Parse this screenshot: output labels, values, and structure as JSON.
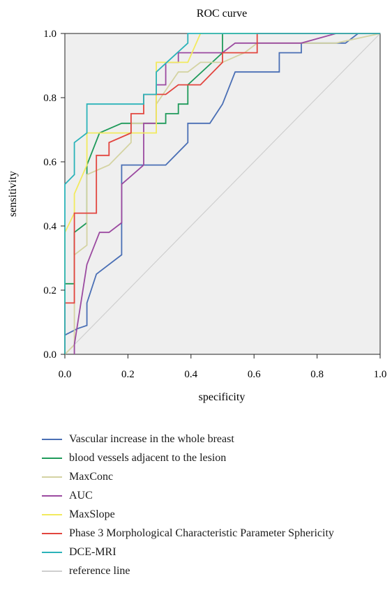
{
  "chart_data": {
    "type": "line",
    "title": "ROC curve",
    "xlabel": "specificity",
    "ylabel": "sensitivity",
    "xlim": [
      0,
      1
    ],
    "ylim": [
      0,
      1
    ],
    "xticks": [
      "0.0",
      "0.2",
      "0.4",
      "0.6",
      "0.8",
      "1.0"
    ],
    "yticks": [
      "0.0",
      "0.2",
      "0.4",
      "0.6",
      "0.8",
      "1.0"
    ],
    "grid": false,
    "legend_position": "bottom",
    "series": [
      {
        "name": "Vascular increase in the whole breast",
        "color": "#4a6fb5",
        "x": [
          0,
          0,
          0.04,
          0.07,
          0.07,
          0.1,
          0.18,
          0.18,
          0.32,
          0.39,
          0.39,
          0.46,
          0.5,
          0.54,
          0.68,
          0.68,
          0.75,
          0.75,
          0.89,
          0.93,
          1.0
        ],
        "y": [
          0,
          0.06,
          0.08,
          0.09,
          0.16,
          0.25,
          0.31,
          0.59,
          0.59,
          0.66,
          0.72,
          0.72,
          0.78,
          0.88,
          0.88,
          0.94,
          0.94,
          0.97,
          0.97,
          1.0,
          1.0
        ]
      },
      {
        "name": "blood vessels adjacent to the lesion",
        "color": "#1e9a5a",
        "x": [
          0,
          0,
          0.03,
          0.03,
          0.07,
          0.07,
          0.11,
          0.18,
          0.22,
          0.32,
          0.32,
          0.36,
          0.36,
          0.39,
          0.39,
          0.5,
          0.5,
          1.0
        ],
        "y": [
          0,
          0.22,
          0.22,
          0.38,
          0.41,
          0.59,
          0.69,
          0.72,
          0.72,
          0.72,
          0.75,
          0.75,
          0.78,
          0.78,
          0.84,
          0.94,
          1.0,
          1.0
        ]
      },
      {
        "name": "MaxConc",
        "color": "#d4d3a2",
        "x": [
          0,
          0.03,
          0.03,
          0.07,
          0.07,
          0.14,
          0.21,
          0.21,
          0.29,
          0.29,
          0.36,
          0.39,
          0.43,
          0.5,
          0.57,
          0.61,
          0.86,
          1.0
        ],
        "y": [
          0,
          0.03,
          0.31,
          0.34,
          0.56,
          0.59,
          0.66,
          0.72,
          0.72,
          0.78,
          0.88,
          0.88,
          0.91,
          0.91,
          0.94,
          0.97,
          0.97,
          1.0
        ]
      },
      {
        "name": "AUC",
        "color": "#9b4aa0",
        "x": [
          0.03,
          0.03,
          0.07,
          0.11,
          0.14,
          0.18,
          0.18,
          0.25,
          0.25,
          0.29,
          0.29,
          0.32,
          0.32,
          0.36,
          0.36,
          0.43,
          0.5,
          0.54,
          0.61,
          0.75,
          0.86,
          1.0
        ],
        "y": [
          0,
          0.03,
          0.28,
          0.38,
          0.38,
          0.41,
          0.53,
          0.59,
          0.72,
          0.72,
          0.84,
          0.84,
          0.91,
          0.91,
          0.94,
          0.94,
          0.94,
          0.97,
          0.97,
          0.97,
          1.0,
          1.0
        ]
      },
      {
        "name": "MaxSlope",
        "color": "#f2ea5e",
        "x": [
          0,
          0,
          0.03,
          0.03,
          0.07,
          0.07,
          0.14,
          0.29,
          0.29,
          0.39,
          0.43,
          1.0
        ],
        "y": [
          0,
          0.38,
          0.44,
          0.5,
          0.59,
          0.69,
          0.69,
          0.69,
          0.91,
          0.91,
          1.0,
          1.0
        ]
      },
      {
        "name": "Phase 3 Morphological Characteristic Parameter Sphericity",
        "color": "#e2453f",
        "x": [
          0,
          0,
          0.03,
          0.03,
          0.1,
          0.1,
          0.14,
          0.14,
          0.21,
          0.21,
          0.25,
          0.25,
          0.29,
          0.32,
          0.36,
          0.43,
          0.5,
          0.5,
          0.61,
          0.61,
          1.0
        ],
        "y": [
          0,
          0.16,
          0.16,
          0.44,
          0.44,
          0.62,
          0.62,
          0.66,
          0.69,
          0.75,
          0.75,
          0.81,
          0.81,
          0.81,
          0.84,
          0.84,
          0.91,
          0.94,
          0.94,
          1.0,
          1.0
        ]
      },
      {
        "name": "DCE-MRI",
        "color": "#2bb3b9",
        "x": [
          0,
          0,
          0.03,
          0.03,
          0.07,
          0.07,
          0.25,
          0.25,
          0.29,
          0.29,
          0.39,
          0.39,
          1.0
        ],
        "y": [
          0,
          0.53,
          0.56,
          0.66,
          0.69,
          0.78,
          0.78,
          0.81,
          0.81,
          0.88,
          0.97,
          1.0,
          1.0
        ]
      },
      {
        "name": "reference line",
        "color": "#cfcfcf",
        "x": [
          0,
          1
        ],
        "y": [
          0,
          1
        ]
      }
    ]
  }
}
